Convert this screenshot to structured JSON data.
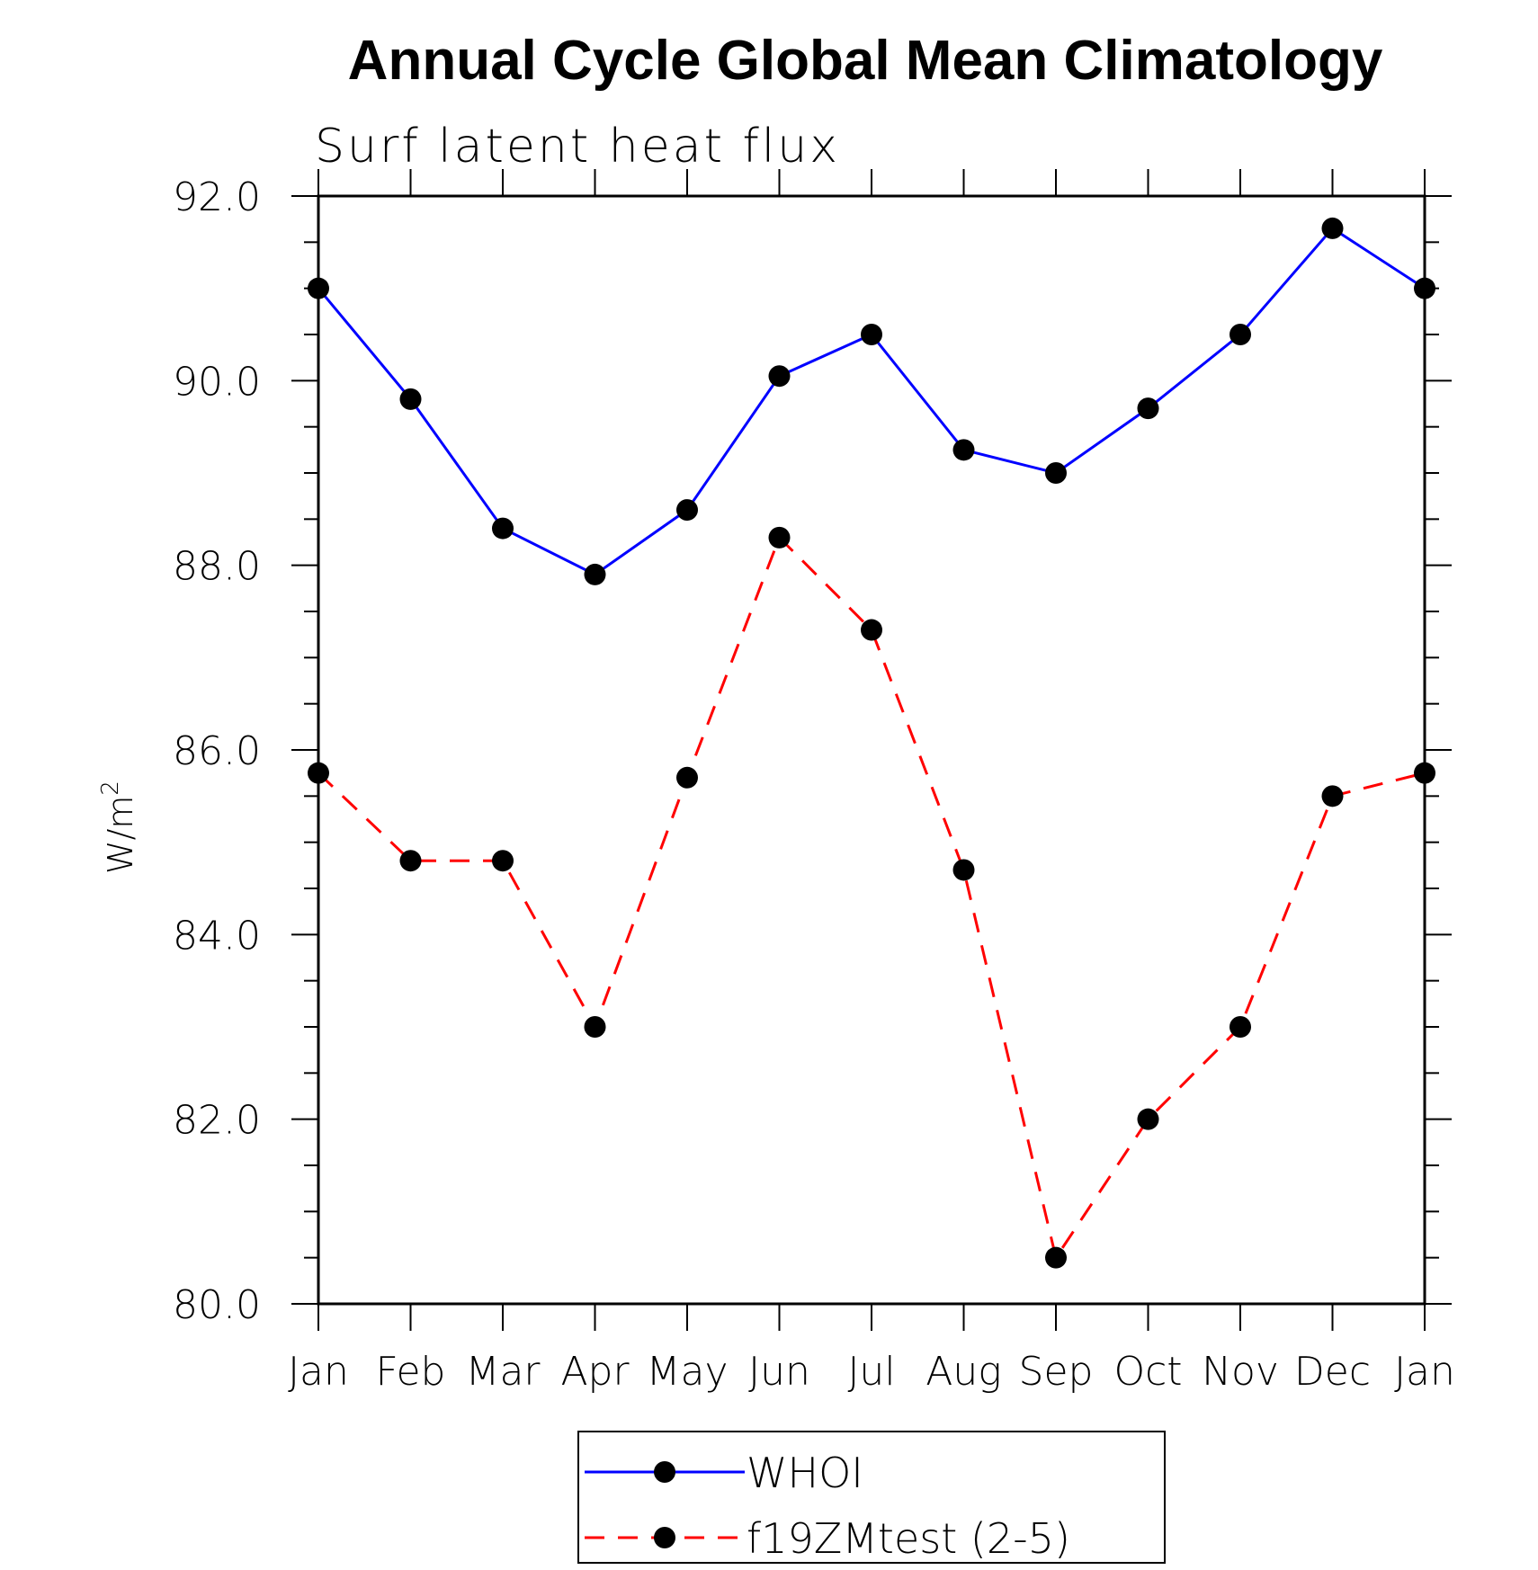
{
  "chart_data": {
    "type": "line",
    "title": "Annual Cycle Global Mean Climatology",
    "subtitle": "Surf latent heat flux",
    "ylabel": "W/m",
    "ylabel_sup": "2",
    "xlabel": "",
    "categories": [
      "Jan",
      "Feb",
      "Mar",
      "Apr",
      "May",
      "Jun",
      "Jul",
      "Aug",
      "Sep",
      "Oct",
      "Nov",
      "Dec",
      "Jan"
    ],
    "ylim": [
      80.0,
      92.0
    ],
    "yticks": [
      "80.0",
      "82.0",
      "84.0",
      "86.0",
      "88.0",
      "90.0",
      "92.0"
    ],
    "ytick_values": [
      80,
      82,
      84,
      86,
      88,
      90,
      92
    ],
    "grid": false,
    "legend_position": "bottom",
    "series": [
      {
        "name": "WHOI",
        "color": "#0000ff",
        "dash": "solid",
        "values": [
          91.0,
          89.8,
          88.4,
          87.9,
          88.6,
          90.05,
          90.5,
          89.25,
          89.0,
          89.7,
          90.5,
          91.65,
          91.0
        ]
      },
      {
        "name": "f19ZMtest (2-5)",
        "color": "#ff0000",
        "dash": "dashed",
        "values": [
          85.75,
          84.8,
          84.8,
          83.0,
          85.7,
          88.3,
          87.3,
          84.7,
          80.5,
          82.0,
          83.0,
          85.5,
          85.75
        ]
      }
    ]
  }
}
